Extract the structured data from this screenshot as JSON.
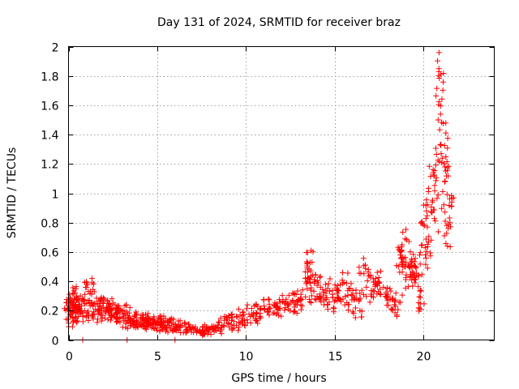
{
  "chart_data": {
    "type": "scatter",
    "title": "Day 131 of 2024, SRMTID for receiver braz",
    "xlabel": "GPS time / hours",
    "ylabel": "SRMTID / TECUs",
    "xlim": [
      0,
      24
    ],
    "ylim": [
      0,
      2
    ],
    "xticks": [
      0,
      5,
      10,
      15,
      20
    ],
    "xtick_labels": [
      "0",
      "5",
      "10",
      "15",
      "20"
    ],
    "yticks": [
      0,
      0.2,
      0.4,
      0.6,
      0.8,
      1,
      1.2,
      1.4,
      1.6,
      1.8,
      2
    ],
    "ytick_labels": [
      "0",
      "0.2",
      "0.4",
      "0.6",
      "0.8",
      "1",
      "1.2",
      "1.4",
      "1.6",
      "1.8",
      "2"
    ],
    "grid": true,
    "marker": "+",
    "color": "#ff0000",
    "series": [
      {
        "name": "SRMTID",
        "x": [
          0.0,
          0.05,
          0.1,
          0.15,
          0.2,
          0.25,
          0.3,
          0.35,
          0.4,
          0.45,
          0.5,
          0.55,
          0.6,
          0.7,
          0.8,
          0.9,
          1.0,
          1.1,
          1.2,
          1.3,
          1.4,
          1.5,
          1.6,
          1.7,
          1.8,
          1.9,
          2.0,
          2.1,
          2.2,
          2.3,
          2.4,
          2.5,
          2.6,
          2.7,
          2.8,
          2.9,
          3.0,
          3.1,
          3.2,
          3.3,
          3.4,
          3.5,
          3.6,
          3.7,
          3.8,
          3.9,
          4.0,
          4.1,
          4.2,
          4.3,
          4.4,
          4.5,
          4.6,
          4.7,
          4.8,
          4.9,
          5.0,
          5.1,
          5.2,
          5.3,
          5.4,
          5.5,
          5.6,
          5.7,
          5.8,
          5.9,
          6.0,
          6.2,
          6.4,
          6.6,
          6.8,
          7.0,
          7.2,
          7.4,
          7.6,
          7.8,
          8.0,
          8.2,
          8.4,
          8.6,
          8.8,
          9.0,
          9.2,
          9.4,
          9.6,
          9.8,
          10.0,
          10.2,
          10.4,
          10.6,
          10.8,
          11.0,
          11.2,
          11.4,
          11.6,
          11.8,
          12.0,
          12.2,
          12.4,
          12.6,
          12.8,
          13.0,
          13.2,
          13.4,
          13.5,
          13.6,
          13.7,
          13.8,
          13.9,
          14.0,
          14.2,
          14.4,
          14.6,
          14.8,
          15.0,
          15.2,
          15.4,
          15.6,
          15.8,
          16.0,
          16.2,
          16.4,
          16.6,
          16.8,
          17.0,
          17.2,
          17.4,
          17.6,
          17.8,
          18.0,
          18.2,
          18.4,
          18.6,
          18.7,
          18.8,
          18.9,
          19.0,
          19.1,
          19.2,
          19.3,
          19.4,
          19.5,
          19.6,
          19.7,
          19.8,
          19.9,
          20.0,
          20.1,
          20.2,
          20.3,
          20.4,
          20.5,
          20.6,
          20.65,
          20.7,
          20.75,
          20.8,
          20.85,
          20.9,
          20.95,
          21.0,
          21.05,
          21.1,
          21.15,
          21.2,
          21.25,
          21.3,
          21.35,
          21.4,
          21.45,
          21.5,
          0.8,
          3.3,
          6.0,
          0.05,
          0.3,
          1.2,
          2.6,
          4.2,
          7.6,
          9.3,
          10.5,
          11.8,
          12.9,
          13.65,
          14.3,
          15.1,
          15.9,
          16.5,
          17.3,
          18.1,
          18.8,
          19.4,
          20.0,
          20.55,
          20.85,
          21.2,
          21.4
        ],
        "y": [
          0.2,
          0.12,
          0.28,
          0.18,
          0.3,
          0.22,
          0.32,
          0.15,
          0.26,
          0.2,
          0.24,
          0.18,
          0.22,
          0.27,
          0.2,
          0.16,
          0.24,
          0.35,
          0.22,
          0.18,
          0.3,
          0.2,
          0.26,
          0.14,
          0.22,
          0.28,
          0.2,
          0.24,
          0.16,
          0.22,
          0.25,
          0.18,
          0.2,
          0.15,
          0.22,
          0.14,
          0.18,
          0.12,
          0.16,
          0.2,
          0.12,
          0.1,
          0.14,
          0.12,
          0.16,
          0.1,
          0.14,
          0.12,
          0.1,
          0.15,
          0.12,
          0.09,
          0.13,
          0.11,
          0.14,
          0.1,
          0.12,
          0.09,
          0.13,
          0.1,
          0.12,
          0.08,
          0.11,
          0.1,
          0.13,
          0.09,
          0.1,
          0.08,
          0.1,
          0.08,
          0.09,
          0.07,
          0.08,
          0.06,
          0.07,
          0.06,
          0.07,
          0.08,
          0.06,
          0.09,
          0.12,
          0.16,
          0.12,
          0.09,
          0.14,
          0.18,
          0.12,
          0.2,
          0.15,
          0.22,
          0.18,
          0.2,
          0.25,
          0.2,
          0.22,
          0.18,
          0.24,
          0.26,
          0.22,
          0.28,
          0.25,
          0.3,
          0.26,
          0.38,
          0.45,
          0.5,
          0.42,
          0.3,
          0.35,
          0.4,
          0.32,
          0.28,
          0.38,
          0.22,
          0.3,
          0.34,
          0.25,
          0.42,
          0.3,
          0.35,
          0.28,
          0.18,
          0.32,
          0.46,
          0.38,
          0.3,
          0.42,
          0.35,
          0.28,
          0.32,
          0.25,
          0.2,
          0.3,
          0.5,
          0.62,
          0.55,
          0.7,
          0.48,
          0.4,
          0.55,
          0.45,
          0.38,
          0.5,
          0.42,
          0.3,
          0.22,
          0.62,
          0.85,
          0.55,
          0.7,
          0.95,
          1.1,
          0.9,
          1.15,
          0.8,
          1.05,
          1.35,
          1.55,
          1.85,
          1.6,
          1.7,
          1.4,
          1.25,
          1.05,
          1.3,
          0.9,
          0.78,
          0.85,
          1.1,
          0.95,
          1.02,
          0.0,
          0.0,
          0.0,
          0.22,
          0.18,
          0.38,
          0.18,
          0.14,
          0.08,
          0.14,
          0.15,
          0.22,
          0.22,
          0.55,
          0.3,
          0.32,
          0.22,
          0.5,
          0.38,
          0.3,
          0.58,
          0.5,
          0.8,
          1.15,
          1.92,
          1.2,
          0.68
        ]
      }
    ]
  }
}
